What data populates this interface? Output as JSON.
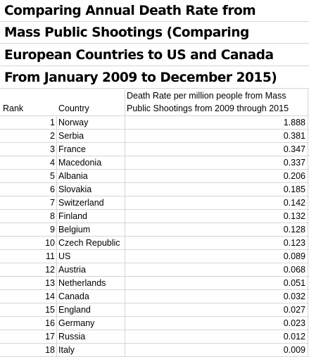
{
  "title": {
    "lines": [
      "Comparing Annual Death Rate from",
      "Mass Public Shootings (Comparing",
      "European Countries to US and Canada",
      "From January 2009 to December 2015)"
    ]
  },
  "table": {
    "headers": {
      "rank": "Rank",
      "country": "Country",
      "rate_line1": "Death Rate per million people from Mass",
      "rate_line2": "Public Shootings from 2009 through 2015"
    },
    "rows": [
      {
        "rank": "1",
        "country": "Norway",
        "rate": "1.888"
      },
      {
        "rank": "2",
        "country": "Serbia",
        "rate": "0.381"
      },
      {
        "rank": "3",
        "country": "France",
        "rate": "0.347"
      },
      {
        "rank": "4",
        "country": "Macedonia",
        "rate": "0.337"
      },
      {
        "rank": "5",
        "country": "Albania",
        "rate": "0.206"
      },
      {
        "rank": "6",
        "country": "Slovakia",
        "rate": "0.185"
      },
      {
        "rank": "7",
        "country": "Switzerland",
        "rate": "0.142"
      },
      {
        "rank": "8",
        "country": "Finland",
        "rate": "0.132"
      },
      {
        "rank": "9",
        "country": "Belgium",
        "rate": "0.128"
      },
      {
        "rank": "10",
        "country": "Czech Republic",
        "rate": "0.123"
      },
      {
        "rank": "11",
        "country": "US",
        "rate": "0.089"
      },
      {
        "rank": "12",
        "country": "Austria",
        "rate": "0.068"
      },
      {
        "rank": "13",
        "country": "Netherlands",
        "rate": "0.051"
      },
      {
        "rank": "14",
        "country": "Canada",
        "rate": "0.032"
      },
      {
        "rank": "15",
        "country": "England",
        "rate": "0.027"
      },
      {
        "rank": "16",
        "country": "Germany",
        "rate": "0.023"
      },
      {
        "rank": "17",
        "country": "Russia",
        "rate": "0.012"
      },
      {
        "rank": "18",
        "country": "Italy",
        "rate": "0.009"
      }
    ]
  }
}
